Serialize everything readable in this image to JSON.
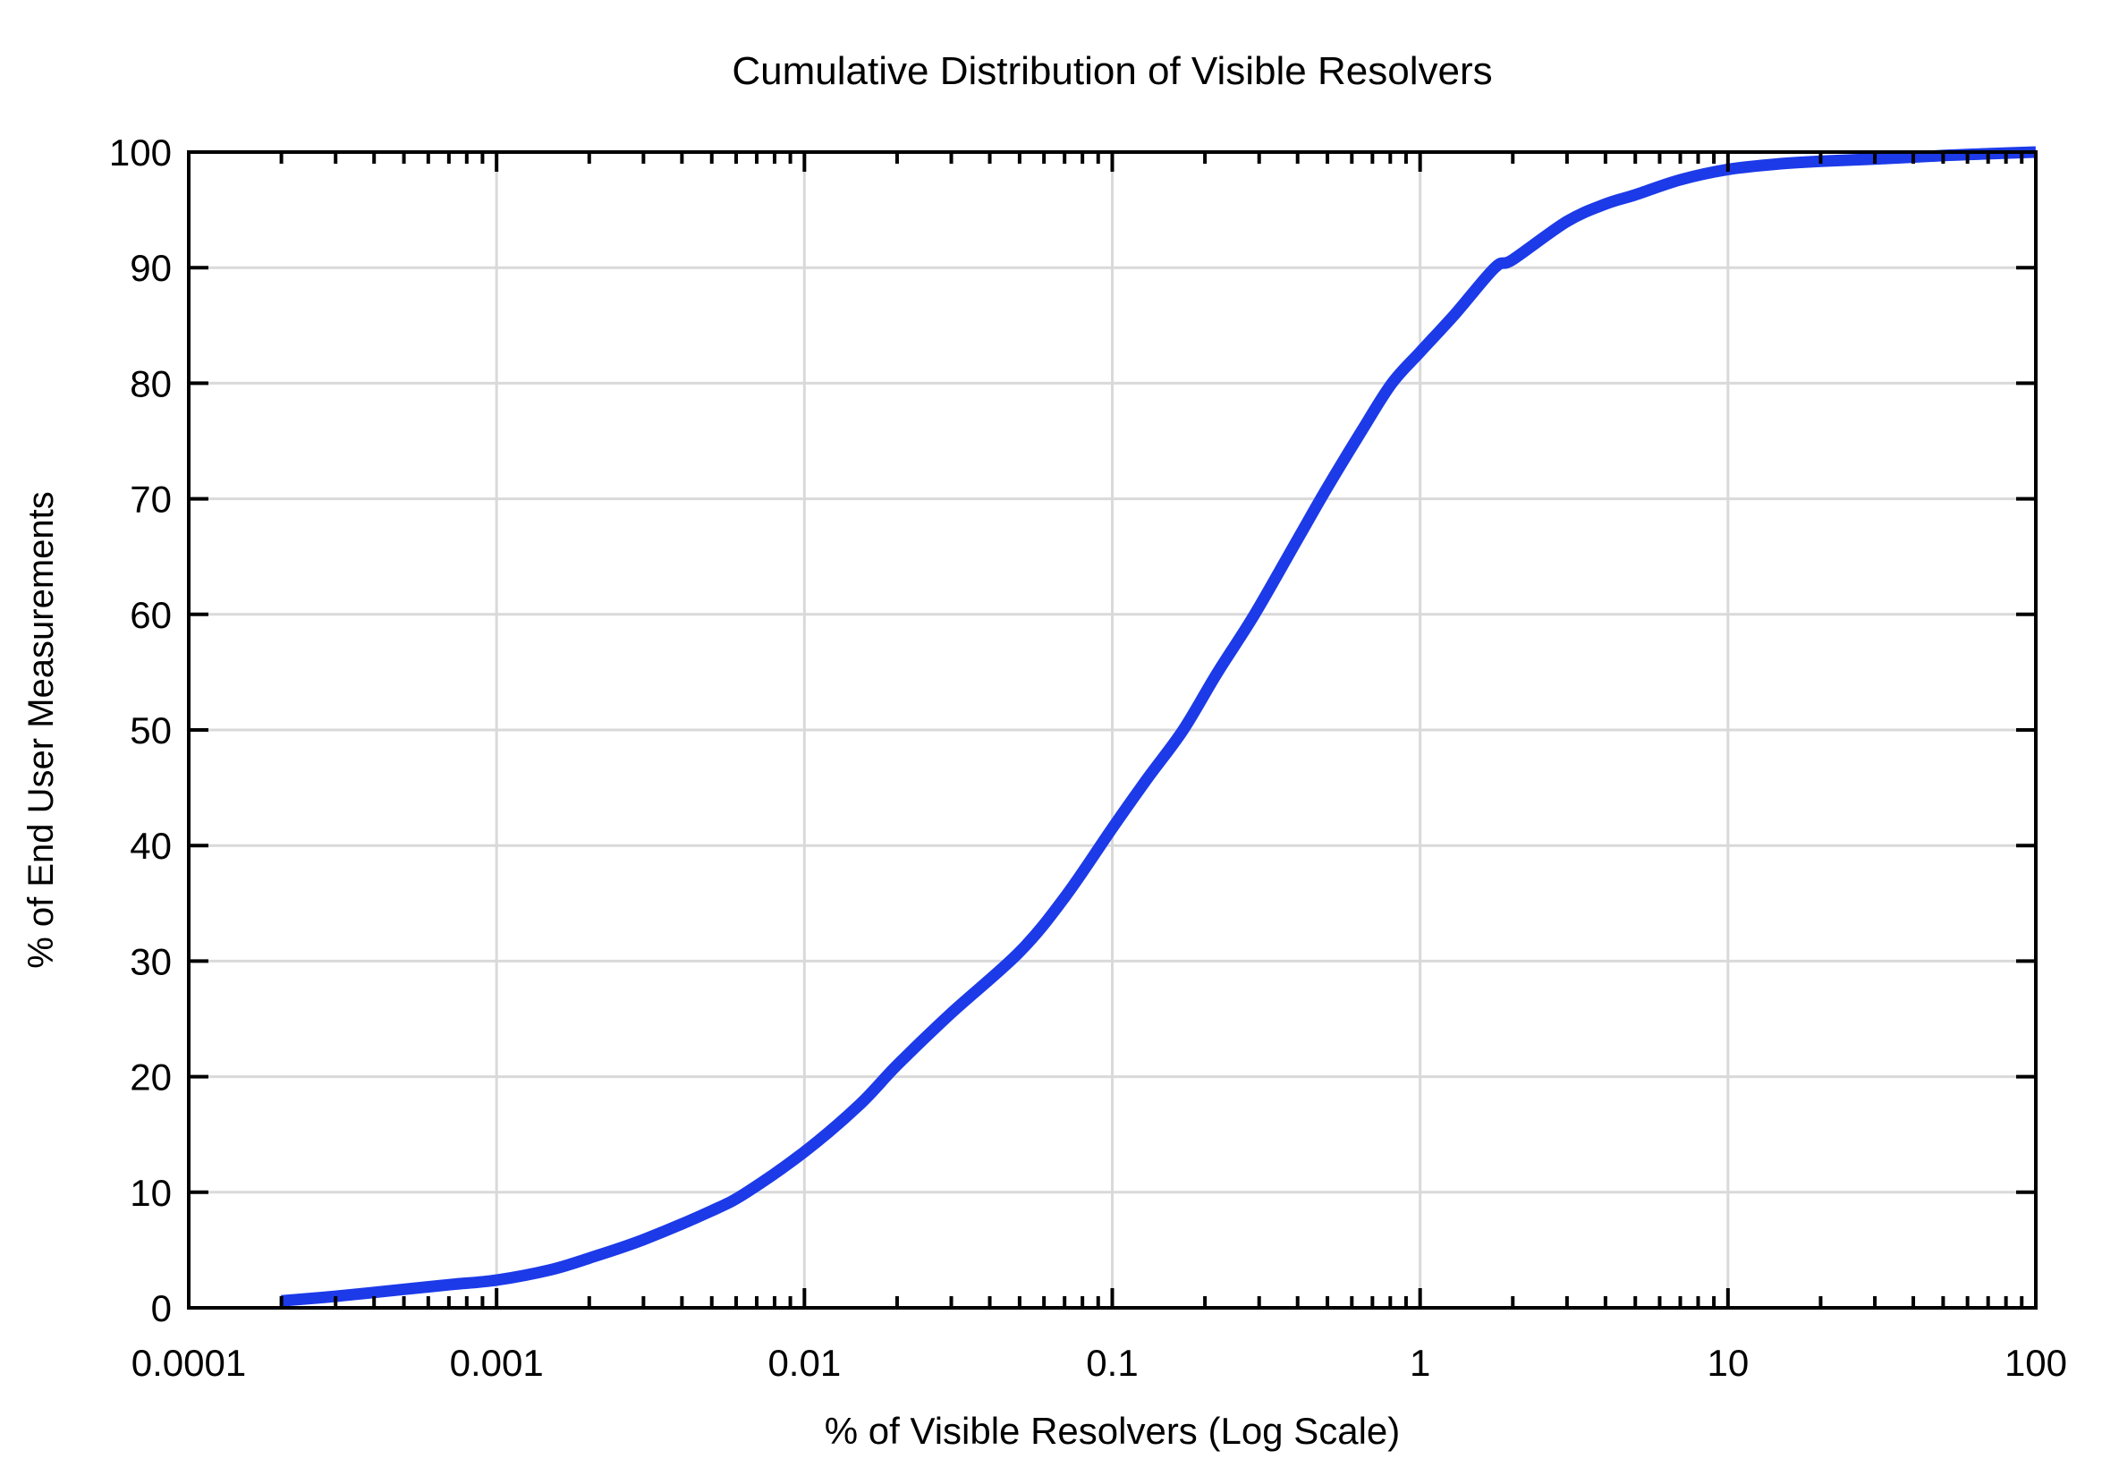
{
  "chart_data": {
    "type": "line",
    "title": "Cumulative Distribution of Visible Resolvers",
    "xlabel": "% of Visible Resolvers (Log Scale)",
    "ylabel": "% of End User Measurements",
    "x_scale": "log",
    "xlim": [
      0.0001,
      100
    ],
    "ylim": [
      0,
      100
    ],
    "grid": true,
    "legend": false,
    "x_ticks": [
      {
        "label": "0.0001",
        "value": 0.0001
      },
      {
        "label": "0.001",
        "value": 0.001
      },
      {
        "label": "0.01",
        "value": 0.01
      },
      {
        "label": "0.1",
        "value": 0.1
      },
      {
        "label": "1",
        "value": 1
      },
      {
        "label": "10",
        "value": 10
      },
      {
        "label": "100",
        "value": 100
      }
    ],
    "x_minor_ticks": "multiples 2-9 within each decade",
    "y_ticks": [
      {
        "label": "0",
        "value": 0
      },
      {
        "label": "10",
        "value": 10
      },
      {
        "label": "20",
        "value": 20
      },
      {
        "label": "30",
        "value": 30
      },
      {
        "label": "40",
        "value": 40
      },
      {
        "label": "50",
        "value": 50
      },
      {
        "label": "60",
        "value": 60
      },
      {
        "label": "70",
        "value": 70
      },
      {
        "label": "80",
        "value": 80
      },
      {
        "label": "90",
        "value": 90
      },
      {
        "label": "100",
        "value": 100
      }
    ],
    "series": [
      {
        "name": "Cumulative distribution",
        "color": "#1c3ae8",
        "line_width": 13,
        "points": [
          [
            0.0002,
            0.6
          ],
          [
            0.0003,
            1.0
          ],
          [
            0.0005,
            1.6
          ],
          [
            0.0007,
            2.0
          ],
          [
            0.001,
            2.4
          ],
          [
            0.0015,
            3.3
          ],
          [
            0.002,
            4.3
          ],
          [
            0.003,
            5.9
          ],
          [
            0.005,
            8.4
          ],
          [
            0.0065,
            10.0
          ],
          [
            0.01,
            13.5
          ],
          [
            0.015,
            17.5
          ],
          [
            0.02,
            21.0
          ],
          [
            0.03,
            25.5
          ],
          [
            0.05,
            30.8
          ],
          [
            0.07,
            35.5
          ],
          [
            0.1,
            41.5
          ],
          [
            0.13,
            45.8
          ],
          [
            0.17,
            50.0
          ],
          [
            0.22,
            55.0
          ],
          [
            0.29,
            60.0
          ],
          [
            0.4,
            66.5
          ],
          [
            0.5,
            71.0
          ],
          [
            0.65,
            76.0
          ],
          [
            0.81,
            80.0
          ],
          [
            1.0,
            82.7
          ],
          [
            1.3,
            86.0
          ],
          [
            1.75,
            90.0
          ],
          [
            2.0,
            90.7
          ],
          [
            3.0,
            94.0
          ],
          [
            4.0,
            95.5
          ],
          [
            5.0,
            96.3
          ],
          [
            7.0,
            97.6
          ],
          [
            10,
            98.5
          ],
          [
            15,
            99.0
          ],
          [
            20,
            99.2
          ],
          [
            30,
            99.4
          ],
          [
            50,
            99.7
          ],
          [
            70,
            99.85
          ],
          [
            100,
            100
          ]
        ]
      }
    ]
  },
  "colors": {
    "background": "#ffffff",
    "curve": "#1c3ae8",
    "gridline": "#d9d9d9",
    "frame": "#000000",
    "text": "#000000"
  }
}
